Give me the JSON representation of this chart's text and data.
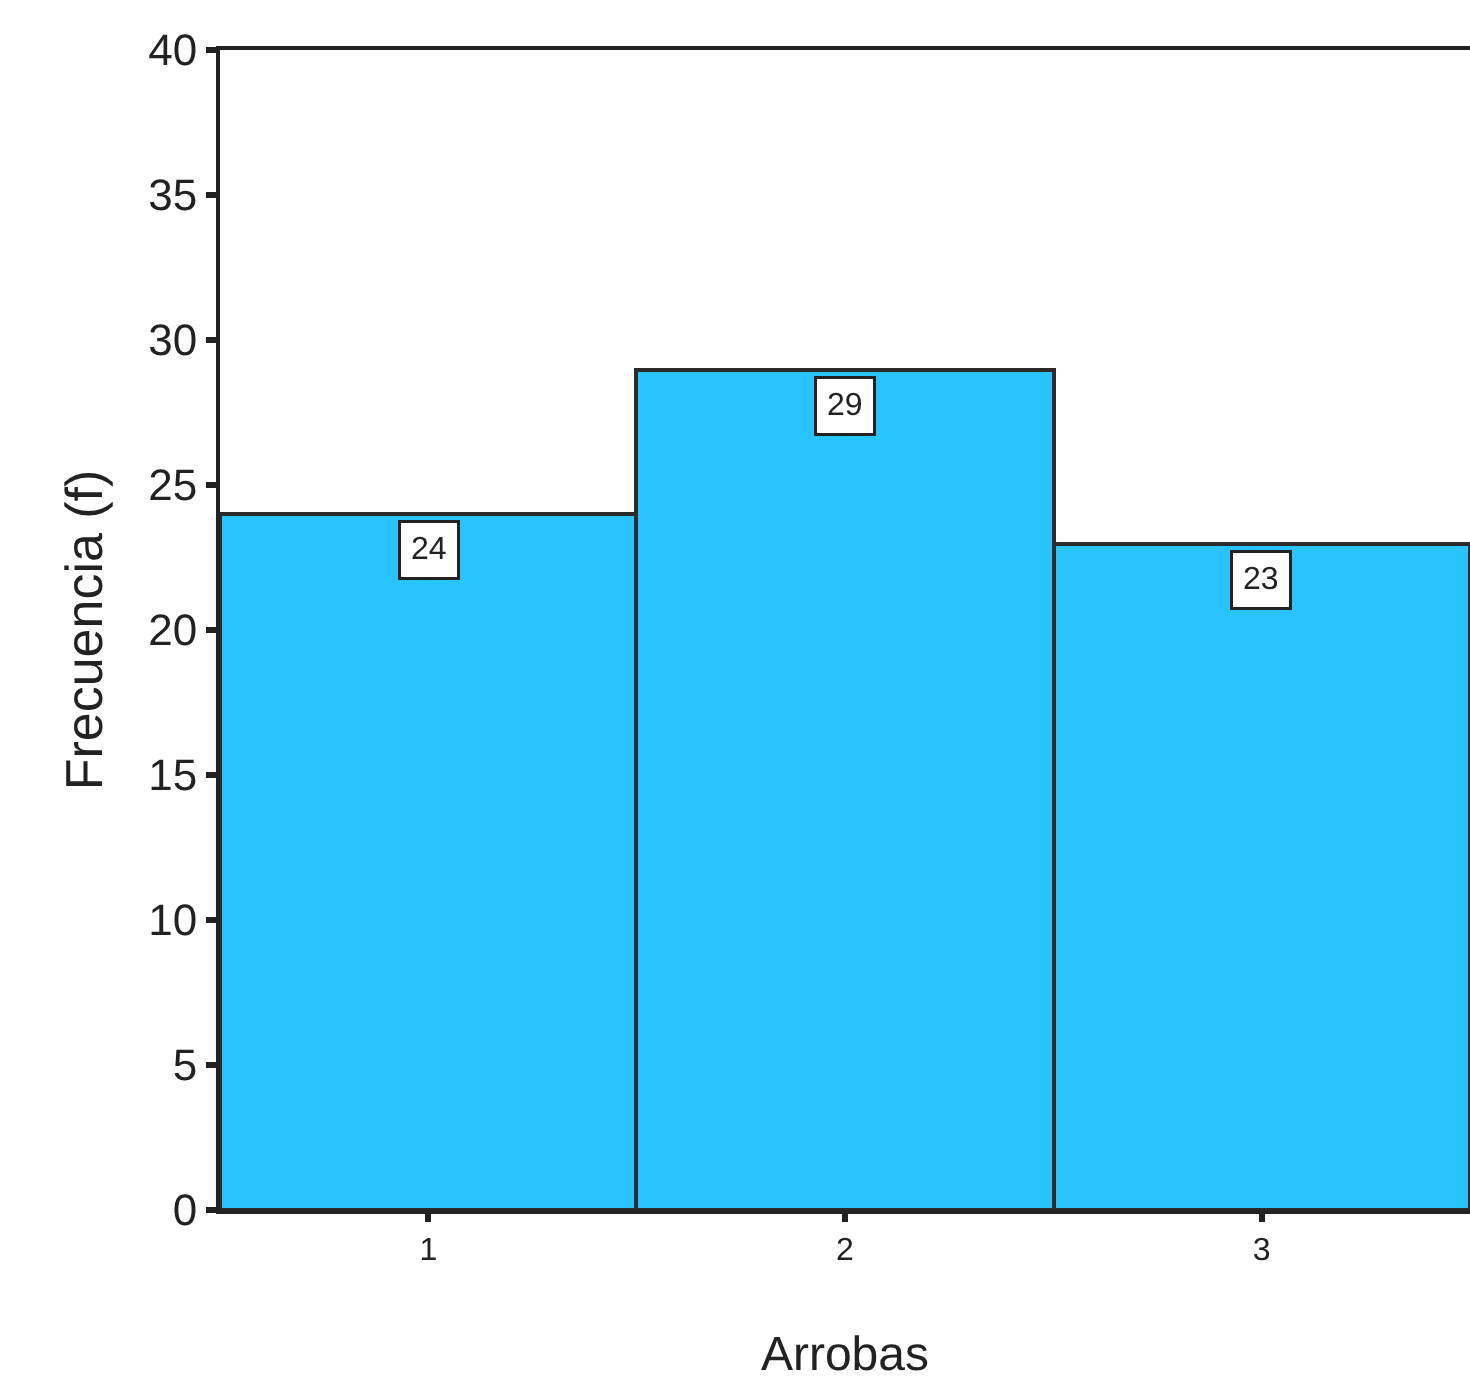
{
  "chart_data": {
    "type": "bar",
    "xlabel": "Arrobas",
    "ylabel": "Frecuencia (f)",
    "categories": [
      "1",
      "2",
      "3"
    ],
    "series": [
      {
        "color": "#29c4ff",
        "values": [
          24,
          29,
          23
        ]
      }
    ],
    "ylim": [
      0,
      40
    ],
    "yticks": [
      0,
      5,
      10,
      15,
      20,
      25,
      30,
      35,
      40
    ],
    "data_labels": true
  }
}
